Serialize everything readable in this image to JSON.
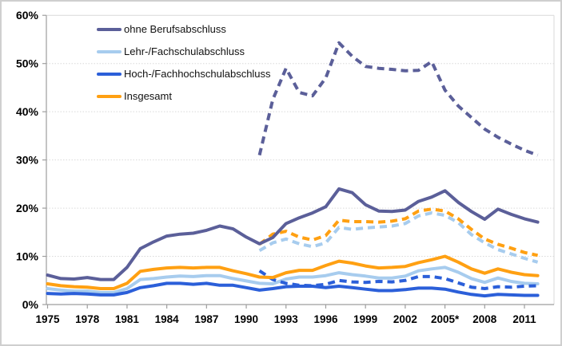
{
  "chart_data": {
    "type": "line",
    "title": "",
    "xlabel": "",
    "ylabel": "",
    "ylim": [
      0,
      60
    ],
    "xlim": [
      1975,
      2012
    ],
    "grid": "horizontal-dotted",
    "legend_position": "top-left-inside",
    "y_ticks": [
      0,
      10,
      20,
      30,
      40,
      50,
      60
    ],
    "y_tick_labels": [
      "0%",
      "10%",
      "20%",
      "30%",
      "40%",
      "50%",
      "60%"
    ],
    "x_tick_years": [
      1975,
      1978,
      1981,
      1984,
      1987,
      1990,
      1993,
      1996,
      1999,
      2002,
      2005,
      2008,
      2011
    ],
    "x_tick_labels": [
      "1975",
      "1978",
      "1981",
      "1984",
      "1987",
      "1990",
      "1993",
      "1996",
      "1999",
      "2002",
      "2005*",
      "2008",
      "2011"
    ],
    "colors": {
      "ohne_berufsabschluss": "#5B5F99",
      "lehr_fachschulabschluss": "#A7CCEE",
      "hoch_fachhochschulabschluss": "#2B5FD9",
      "insgesamt": "#FFA012",
      "gridline": "#D9D9D9",
      "axis": "#9E9E9E",
      "plot_border": "#D9D9D9"
    },
    "legend": [
      {
        "label": "ohne Berufsabschluss",
        "color": "#5B5F99"
      },
      {
        "label": "Lehr-/Fachschulabschluss",
        "color": "#A7CCEE"
      },
      {
        "label": "Hoch-/Fachhochschulabschluss",
        "color": "#2B5FD9"
      },
      {
        "label": "Insgesamt",
        "color": "#FFA012"
      }
    ],
    "series": [
      {
        "id": "lehr-fachschulabschluss-dashed",
        "label": "Lehr-/Fachschulabschluss",
        "style": "dashed",
        "color": "#A7CCEE",
        "start_year": 1991,
        "values": [
          11.2,
          12.8,
          13.6,
          12.6,
          12.0,
          12.8,
          16.0,
          15.6,
          15.9,
          16.1,
          16.3,
          16.8,
          18.4,
          19.0,
          18.5,
          17.0,
          14.5,
          12.8,
          11.4,
          10.5,
          9.6,
          8.8
        ]
      },
      {
        "id": "insgesamt-dashed",
        "label": "Insgesamt",
        "style": "dashed",
        "color": "#FFA012",
        "start_year": 1991,
        "values": [
          12.5,
          14.6,
          15.2,
          14.0,
          13.4,
          14.3,
          17.5,
          17.2,
          17.2,
          17.1,
          17.3,
          17.8,
          19.4,
          19.8,
          19.4,
          17.8,
          15.6,
          13.6,
          12.5,
          11.7,
          10.8,
          10.2
        ]
      },
      {
        "id": "ohne-berufsabschluss-dashed",
        "label": "ohne Berufsabschluss",
        "style": "dashed",
        "color": "#5B5F99",
        "start_year": 1991,
        "values": [
          31.0,
          42.5,
          49.0,
          44.0,
          43.3,
          47.0,
          54.3,
          51.5,
          49.4,
          49.0,
          48.8,
          48.5,
          48.6,
          50.4,
          44.5,
          41.2,
          38.8,
          36.4,
          34.7,
          33.3,
          32.0,
          31.0
        ]
      },
      {
        "id": "ohne-berufsabschluss-solid",
        "label": "ohne Berufsabschluss",
        "style": "solid",
        "color": "#5B5F99",
        "start_year": 1975,
        "values": [
          6.1,
          5.4,
          5.3,
          5.6,
          5.2,
          5.2,
          7.7,
          11.6,
          13.0,
          14.2,
          14.6,
          14.8,
          15.4,
          16.3,
          15.7,
          14.0,
          12.6,
          13.9,
          16.8,
          18.0,
          19.0,
          20.3,
          24.0,
          23.2,
          20.7,
          19.4,
          19.3,
          19.6,
          21.4,
          22.3,
          23.6,
          21.2,
          19.3,
          17.7,
          19.8,
          18.7,
          17.8,
          17.1
        ]
      },
      {
        "id": "lehr-fachschulabschluss-solid",
        "label": "Lehr-/Fachschulabschluss",
        "style": "solid",
        "color": "#A7CCEE",
        "start_year": 1975,
        "values": [
          3.3,
          3.0,
          2.8,
          2.8,
          2.5,
          2.5,
          3.3,
          5.2,
          5.4,
          5.7,
          5.9,
          5.8,
          6.0,
          6.0,
          5.4,
          4.9,
          4.4,
          4.3,
          5.3,
          5.7,
          5.7,
          6.0,
          6.6,
          6.2,
          5.9,
          5.5,
          5.5,
          5.9,
          7.0,
          7.4,
          7.7,
          6.7,
          5.4,
          4.6,
          5.5,
          4.8,
          4.4,
          4.3
        ]
      },
      {
        "id": "hoch-fachhochschulabschluss-solid",
        "label": "Hoch-/Fachhochschulabschluss",
        "style": "solid",
        "color": "#2B5FD9",
        "start_year": 1975,
        "values": [
          2.3,
          2.2,
          2.3,
          2.2,
          2.0,
          2.0,
          2.5,
          3.5,
          3.9,
          4.4,
          4.4,
          4.2,
          4.4,
          4.0,
          4.0,
          3.5,
          3.0,
          3.3,
          3.7,
          3.8,
          3.8,
          3.5,
          3.8,
          3.5,
          3.2,
          2.9,
          2.9,
          3.1,
          3.4,
          3.4,
          3.2,
          2.6,
          2.1,
          1.8,
          2.1,
          2.0,
          1.9,
          1.9
        ]
      },
      {
        "id": "hoch-fachhochschulabschluss-dashed",
        "label": "Hoch-/Fachhochschulabschluss",
        "style": "dashed",
        "color": "#2B5FD9",
        "start_year": 1991,
        "values": [
          7.0,
          5.2,
          4.4,
          4.0,
          3.9,
          4.2,
          5.0,
          4.7,
          4.6,
          4.8,
          4.7,
          5.0,
          5.8,
          5.8,
          5.4,
          4.5,
          3.6,
          3.3,
          3.7,
          3.6,
          3.8,
          3.9
        ]
      },
      {
        "id": "insgesamt-solid",
        "label": "Insgesamt",
        "style": "solid",
        "color": "#FFA012",
        "start_year": 1975,
        "values": [
          4.3,
          3.9,
          3.7,
          3.6,
          3.3,
          3.3,
          4.4,
          6.9,
          7.3,
          7.6,
          7.7,
          7.6,
          7.7,
          7.7,
          7.0,
          6.4,
          5.7,
          5.6,
          6.6,
          7.1,
          7.1,
          8.1,
          9.0,
          8.6,
          8.0,
          7.6,
          7.7,
          7.9,
          8.7,
          9.3,
          10.0,
          8.8,
          7.4,
          6.5,
          7.4,
          6.7,
          6.2,
          6.0
        ]
      }
    ]
  }
}
